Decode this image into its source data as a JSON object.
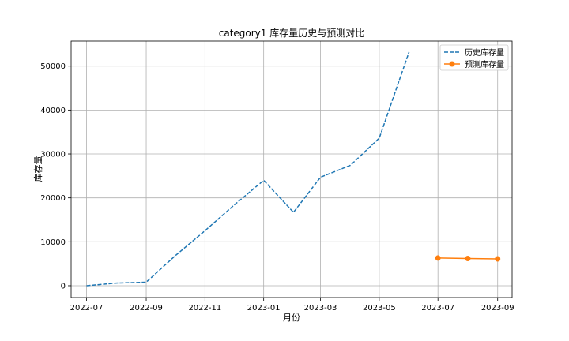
{
  "chart_data": {
    "type": "line",
    "title": "category1 库存量历史与预测对比",
    "xlabel": "月份",
    "ylabel": "库存量",
    "grid": true,
    "legend_position": "top-right",
    "x_ticks": [
      "2022-07",
      "2022-09",
      "2022-11",
      "2023-01",
      "2023-03",
      "2023-05",
      "2023-07",
      "2023-09"
    ],
    "y_ticks": [
      0,
      10000,
      20000,
      30000,
      40000,
      50000
    ],
    "ylim": [
      -2700,
      55700
    ],
    "xlim": [
      "2022-06-15",
      "2023-09-16"
    ],
    "series": [
      {
        "name": "历史库存量",
        "color": "#1f77b4",
        "style": "dashed",
        "marker": "none",
        "points": [
          {
            "x": "2022-07-01",
            "y": 0
          },
          {
            "x": "2022-08-01",
            "y": 600
          },
          {
            "x": "2022-09-01",
            "y": 800
          },
          {
            "x": "2022-10-01",
            "y": 6800
          },
          {
            "x": "2022-11-01",
            "y": 12500
          },
          {
            "x": "2022-12-01",
            "y": 18300
          },
          {
            "x": "2023-01-01",
            "y": 24000
          },
          {
            "x": "2023-02-01",
            "y": 16700
          },
          {
            "x": "2023-03-01",
            "y": 24700
          },
          {
            "x": "2023-04-01",
            "y": 27400
          },
          {
            "x": "2023-05-01",
            "y": 33600
          },
          {
            "x": "2023-06-01",
            "y": 53200
          }
        ]
      },
      {
        "name": "预测库存量",
        "color": "#ff7f0e",
        "style": "solid",
        "marker": "circle",
        "points": [
          {
            "x": "2023-07-01",
            "y": 6300
          },
          {
            "x": "2023-08-01",
            "y": 6200
          },
          {
            "x": "2023-09-01",
            "y": 6100
          }
        ]
      }
    ]
  }
}
